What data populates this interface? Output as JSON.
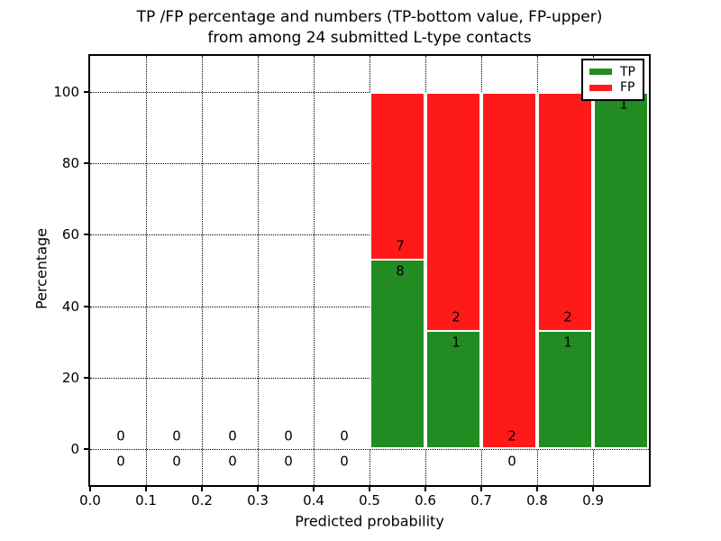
{
  "title": {
    "line1": "TP /FP percentage and numbers (TP-bottom value, FP-upper)",
    "line2": "from among 24 submitted L-type contacts"
  },
  "axes": {
    "xlabel": "Predicted probability",
    "ylabel": "Percentage",
    "x_tick_labels": [
      "0.0",
      "0.1",
      "0.2",
      "0.3",
      "0.4",
      "0.5",
      "0.6",
      "0.7",
      "0.8",
      "0.9"
    ],
    "x_tick_values": [
      0.0,
      0.1,
      0.2,
      0.3,
      0.4,
      0.5,
      0.6,
      0.7,
      0.8,
      0.9
    ],
    "x_gridline_values": [
      0.1,
      0.2,
      0.3,
      0.4,
      0.5,
      0.6,
      0.7,
      0.8,
      0.9
    ],
    "y_tick_labels": [
      "0",
      "20",
      "40",
      "60",
      "80",
      "100"
    ],
    "y_tick_values": [
      0,
      20,
      40,
      60,
      80,
      100
    ],
    "xlim": [
      0.0,
      1.0
    ],
    "ylim": [
      -10,
      110
    ],
    "grid": "dotted"
  },
  "legend": {
    "position": "upper-right",
    "items": [
      {
        "label": "TP",
        "color": "#228B22"
      },
      {
        "label": "FP",
        "color": "#FF1A1A"
      }
    ]
  },
  "colors": {
    "tp": "#228B22",
    "fp": "#FF1A1A",
    "grid": "#000000",
    "background": "#ffffff"
  },
  "chart_data": {
    "type": "bar",
    "stacked": true,
    "total_contacts": 24,
    "series_names": [
      "TP",
      "FP"
    ],
    "bins": [
      {
        "range": [
          0.0,
          0.1
        ],
        "tp": 0,
        "fp": 0,
        "tp_pct": 0,
        "total_pct": 0
      },
      {
        "range": [
          0.1,
          0.2
        ],
        "tp": 0,
        "fp": 0,
        "tp_pct": 0,
        "total_pct": 0
      },
      {
        "range": [
          0.2,
          0.3
        ],
        "tp": 0,
        "fp": 0,
        "tp_pct": 0,
        "total_pct": 0
      },
      {
        "range": [
          0.3,
          0.4
        ],
        "tp": 0,
        "fp": 0,
        "tp_pct": 0,
        "total_pct": 0
      },
      {
        "range": [
          0.4,
          0.5
        ],
        "tp": 0,
        "fp": 0,
        "tp_pct": 0,
        "total_pct": 0
      },
      {
        "range": [
          0.5,
          0.6
        ],
        "tp": 8,
        "fp": 7,
        "tp_pct": 53.33,
        "total_pct": 100
      },
      {
        "range": [
          0.6,
          0.7
        ],
        "tp": 1,
        "fp": 2,
        "tp_pct": 33.33,
        "total_pct": 100
      },
      {
        "range": [
          0.7,
          0.8
        ],
        "tp": 0,
        "fp": 2,
        "tp_pct": 0,
        "total_pct": 100
      },
      {
        "range": [
          0.8,
          0.9
        ],
        "tp": 1,
        "fp": 2,
        "tp_pct": 33.33,
        "total_pct": 100
      },
      {
        "range": [
          0.9,
          1.0
        ],
        "tp": 1,
        "fp": 0,
        "tp_pct": 100,
        "total_pct": 100
      }
    ]
  }
}
